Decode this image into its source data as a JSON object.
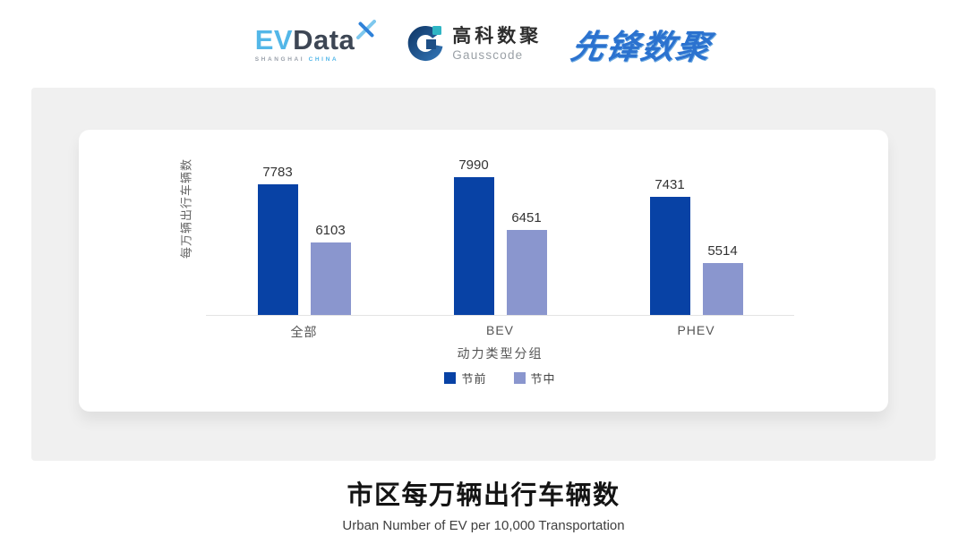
{
  "header": {
    "evdata": {
      "ev": "EV",
      "data": "Data",
      "sub_left": "SHANGHAI",
      "sub_right": "CHINA"
    },
    "gausscode": {
      "cn": "高科数聚",
      "en": "Gausscode"
    },
    "xianfeng": "先锋数聚"
  },
  "chart_data": {
    "type": "bar",
    "categories": [
      "全部",
      "BEV",
      "PHEV"
    ],
    "series": [
      {
        "name": "节前",
        "color": "#0842a5",
        "values": [
          7783,
          7990,
          7431
        ]
      },
      {
        "name": "节中",
        "color": "#8a96ce",
        "values": [
          6103,
          6451,
          5514
        ]
      }
    ],
    "title": "市区每万辆出行车辆数",
    "subtitle": "Urban Number of EV per 10,000 Transportation",
    "xlabel": "动力类型分组",
    "ylabel": "每万辆出行车辆数",
    "ylim": [
      4000,
      8200
    ],
    "grid": false,
    "legend_position": "bottom",
    "colors": {
      "axis_line": "#e3e3e3",
      "label_text": "#333333"
    }
  },
  "footer": {
    "title": "市区每万辆出行车辆数",
    "subtitle": "Urban Number of EV per 10,000 Transportation"
  }
}
